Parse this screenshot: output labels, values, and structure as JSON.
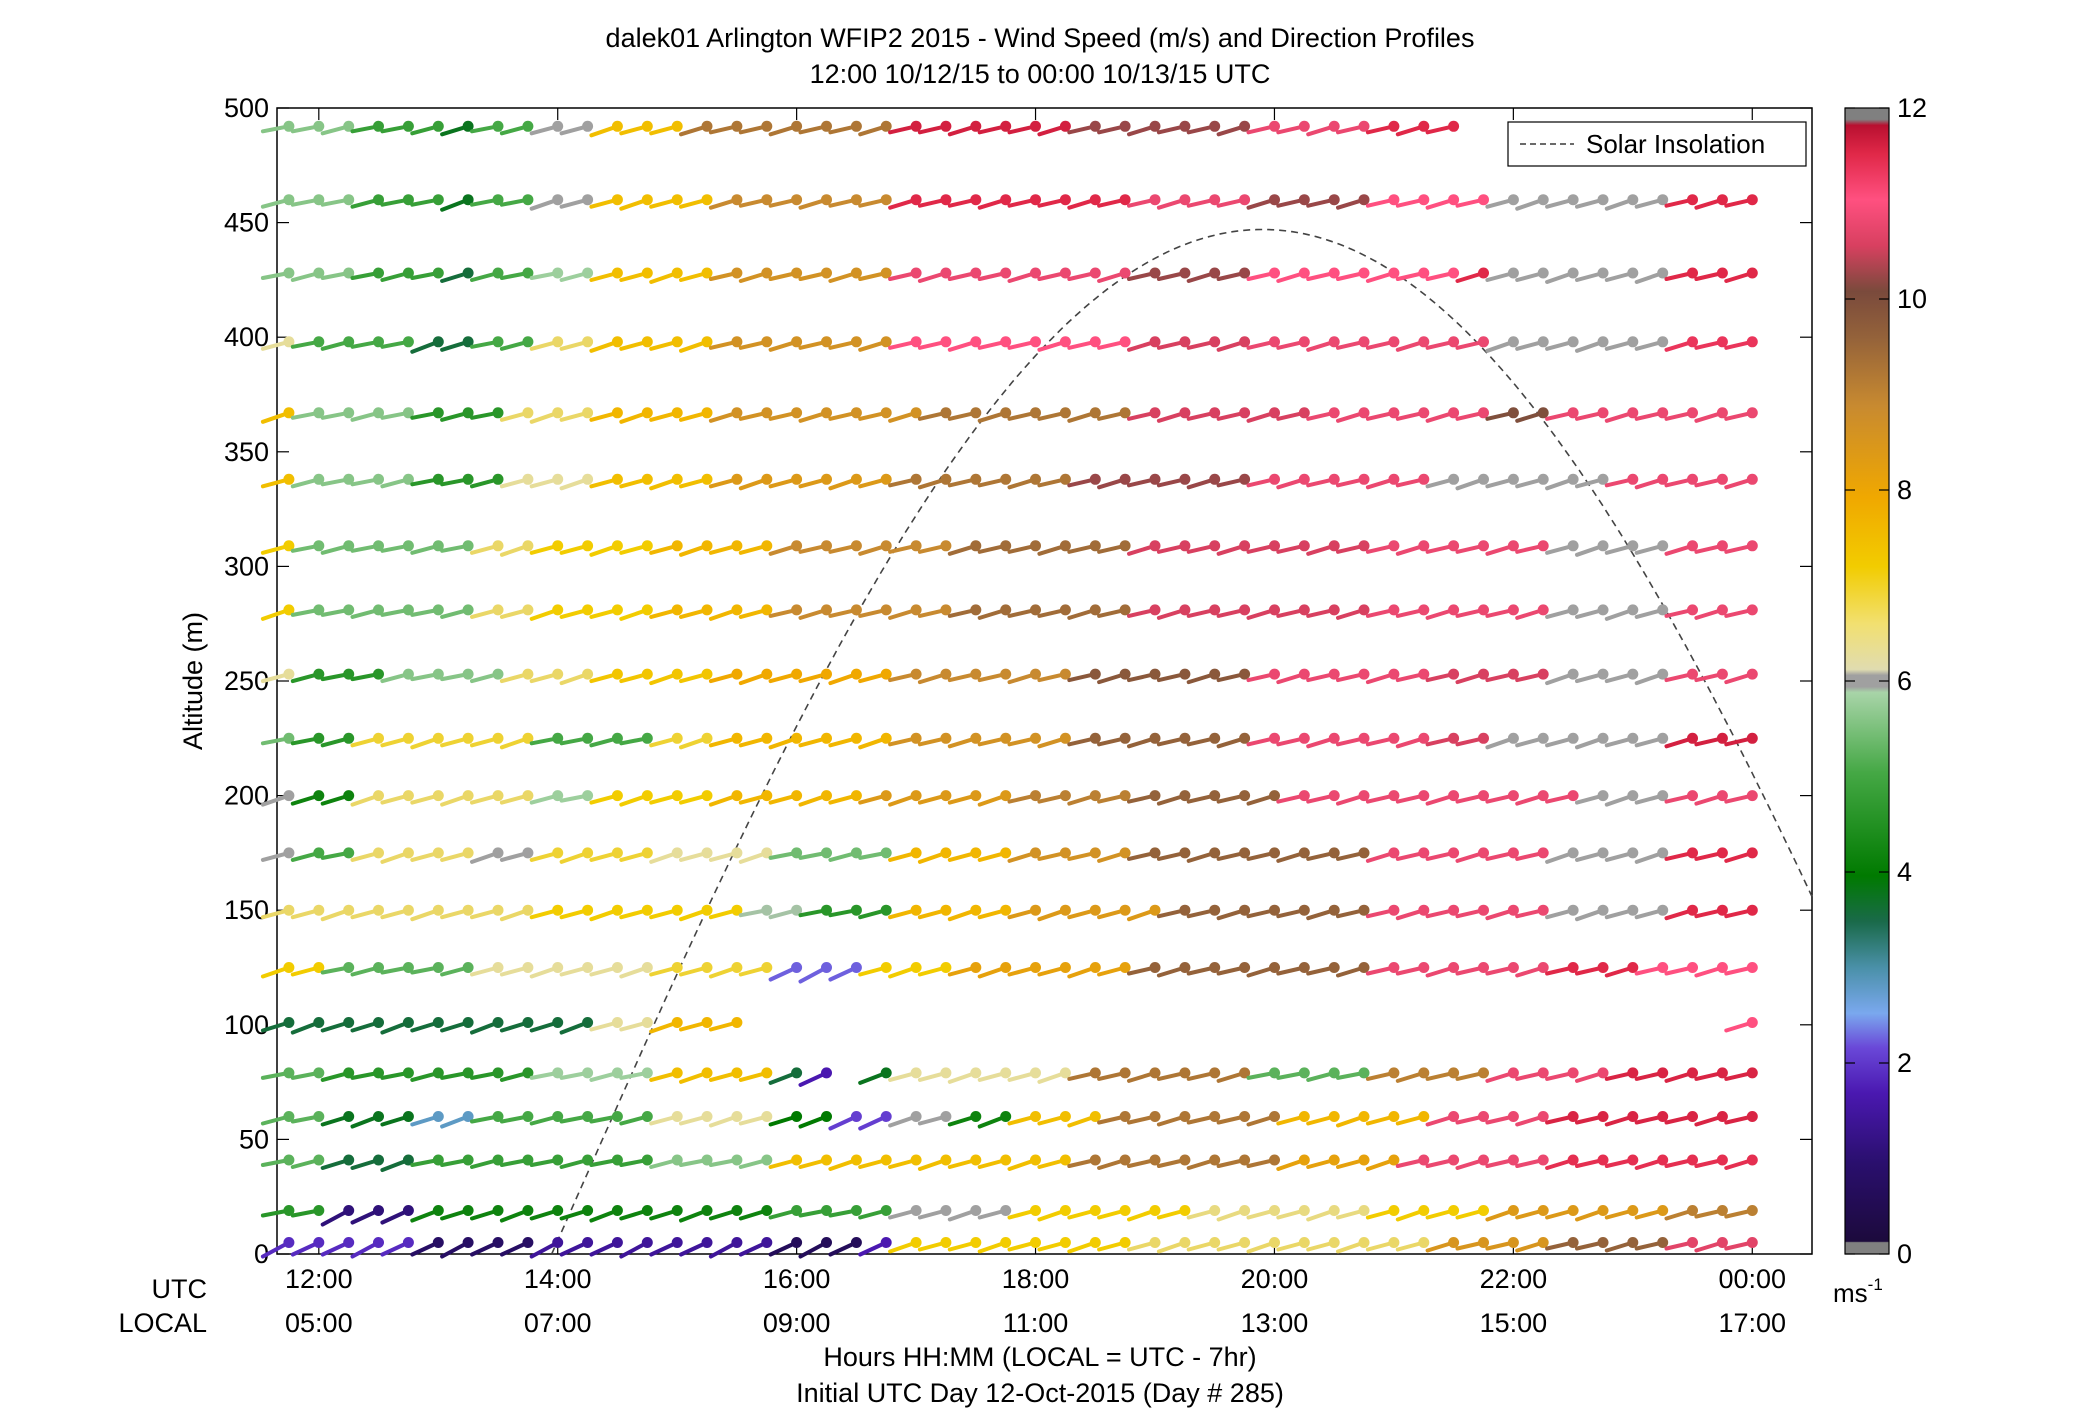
{
  "chart_data": {
    "type": "wind-barb-profile",
    "title": "dalek01 Arlington WFIP2 2015 - Wind Speed (m/s) and Direction Profiles",
    "subtitle": "12:00 10/12/15 to 00:00 10/13/15  UTC",
    "xlabel_line1": "Hours HH:MM  (LOCAL = UTC - 7hr)",
    "xlabel_line2": "Initial UTC Day 12-Oct-2015 (Day # 285)",
    "ylabel": "Altitude (m)",
    "x_range_hours_utc": [
      11.65,
      24.5
    ],
    "ylim": [
      0,
      500
    ],
    "y_ticks": [
      0,
      50,
      100,
      150,
      200,
      250,
      300,
      350,
      400,
      450,
      500
    ],
    "x_row_label_utc": "UTC",
    "x_row_label_local": "LOCAL",
    "x_ticks": [
      {
        "hour": 12,
        "utc": "12:00",
        "local": "05:00"
      },
      {
        "hour": 14,
        "utc": "14:00",
        "local": "07:00"
      },
      {
        "hour": 16,
        "utc": "16:00",
        "local": "09:00"
      },
      {
        "hour": 18,
        "utc": "18:00",
        "local": "11:00"
      },
      {
        "hour": 20,
        "utc": "20:00",
        "local": "13:00"
      },
      {
        "hour": 22,
        "utc": "22:00",
        "local": "15:00"
      },
      {
        "hour": 24,
        "utc": "00:00",
        "local": "17:00"
      }
    ],
    "colorbar": {
      "label": "ms",
      "label_sup": "-1",
      "range": [
        0,
        12
      ],
      "ticks": [
        0,
        2,
        4,
        6,
        8,
        10,
        12
      ]
    },
    "legend": {
      "label": "Solar Insolation",
      "placement": "top-right",
      "style": "dashed"
    },
    "solar_insolation": {
      "start_hour": 13.95,
      "peak_hour": 19.9,
      "peak_altitude": 447,
      "end_hour": 24.5,
      "end_altitude": 152
    },
    "time_step_hours": 0.25,
    "levels": [
      {
        "alt": 5,
        "start": 11.75,
        "end": 24.0,
        "segments": [
          [
            11.75,
            1.8
          ],
          [
            13.0,
            0.8
          ],
          [
            14.0,
            1.4
          ],
          [
            16.0,
            0.6
          ],
          [
            16.75,
            1.6
          ],
          [
            17.0,
            7.0
          ],
          [
            19.0,
            6.6
          ],
          [
            21.5,
            8.5
          ],
          [
            22.5,
            9.6
          ],
          [
            23.5,
            10.5
          ]
        ]
      },
      {
        "alt": 19,
        "start": 11.75,
        "end": 24.0,
        "segments": [
          [
            11.75,
            4.6
          ],
          [
            12.25,
            1.1
          ],
          [
            13.0,
            4.2
          ],
          [
            16.0,
            4.8
          ],
          [
            17.0,
            6.2
          ],
          [
            18.0,
            7.0
          ],
          [
            19.5,
            6.5
          ],
          [
            21.0,
            7.0
          ],
          [
            22.0,
            8.4
          ],
          [
            23.5,
            9.0
          ]
        ]
      },
      {
        "alt": 41,
        "start": 11.75,
        "end": 24.0,
        "segments": [
          [
            11.75,
            5.2
          ],
          [
            12.25,
            3.6
          ],
          [
            13.0,
            4.8
          ],
          [
            15.0,
            5.6
          ],
          [
            16.0,
            7.4
          ],
          [
            18.5,
            9.2
          ],
          [
            20.25,
            8.2
          ],
          [
            21.25,
            10.6
          ],
          [
            22.5,
            11.3
          ]
        ]
      },
      {
        "alt": 60,
        "start": 11.75,
        "end": 24.0,
        "segments": [
          [
            11.75,
            5.2
          ],
          [
            12.25,
            3.8
          ],
          [
            13.0,
            2.8
          ],
          [
            13.5,
            5.0
          ],
          [
            15.0,
            6.4
          ],
          [
            16.0,
            4.0
          ],
          [
            16.5,
            2.0
          ],
          [
            17.0,
            6.2
          ],
          [
            17.5,
            4.2
          ],
          [
            18.0,
            7.4
          ],
          [
            18.75,
            9.2
          ],
          [
            20.25,
            7.6
          ],
          [
            21.5,
            10.6
          ],
          [
            22.5,
            11.5
          ]
        ]
      },
      {
        "alt": 79,
        "start": 11.75,
        "end": 24.0,
        "segments": [
          [
            11.75,
            5.2
          ],
          [
            12.25,
            4.6
          ],
          [
            14.0,
            5.8
          ],
          [
            15.0,
            7.4
          ],
          [
            16.0,
            3.6
          ],
          [
            16.25,
            1.6
          ],
          [
            16.5,
            9999
          ],
          [
            16.75,
            3.8
          ],
          [
            17.0,
            6.4
          ],
          [
            18.5,
            9.2
          ],
          [
            20.0,
            5.2
          ],
          [
            21.0,
            9.0
          ],
          [
            22.0,
            10.6
          ],
          [
            23.0,
            11.5
          ]
        ]
      },
      {
        "alt": 101,
        "start": 11.75,
        "end": 24.0,
        "segments": [
          [
            11.75,
            3.6
          ],
          [
            14.5,
            6.4
          ],
          [
            15.0,
            7.6
          ],
          [
            15.75,
            9999
          ],
          [
            24.0,
            10.8
          ]
        ]
      },
      {
        "alt": 125,
        "start": 11.75,
        "end": 24.0,
        "segments": [
          [
            11.75,
            7.0
          ],
          [
            12.25,
            5.2
          ],
          [
            13.5,
            6.4
          ],
          [
            15.0,
            6.8
          ],
          [
            16.0,
            2.2
          ],
          [
            16.75,
            7.0
          ],
          [
            17.5,
            8.2
          ],
          [
            19.0,
            9.6
          ],
          [
            21.0,
            10.6
          ],
          [
            22.5,
            11.4
          ],
          [
            23.25,
            10.8
          ]
        ]
      },
      {
        "alt": 150,
        "start": 11.75,
        "end": 24.0,
        "segments": [
          [
            11.75,
            6.6
          ],
          [
            14.0,
            7.0
          ],
          [
            15.75,
            6.0
          ],
          [
            16.25,
            4.6
          ],
          [
            17.0,
            7.6
          ],
          [
            18.0,
            8.4
          ],
          [
            19.25,
            9.6
          ],
          [
            21.0,
            10.6
          ],
          [
            22.5,
            6.2
          ],
          [
            23.5,
            11.4
          ]
        ]
      },
      {
        "alt": 175,
        "start": 11.75,
        "end": 24.0,
        "segments": [
          [
            11.75,
            6.2
          ],
          [
            12.0,
            5.0
          ],
          [
            12.5,
            6.6
          ],
          [
            13.5,
            6.2
          ],
          [
            14.0,
            6.8
          ],
          [
            15.0,
            6.4
          ],
          [
            16.0,
            5.4
          ],
          [
            17.0,
            7.6
          ],
          [
            18.0,
            8.6
          ],
          [
            19.0,
            9.6
          ],
          [
            21.0,
            10.6
          ],
          [
            22.5,
            6.2
          ],
          [
            23.5,
            11.4
          ]
        ]
      },
      {
        "alt": 200,
        "start": 11.75,
        "end": 24.0,
        "segments": [
          [
            11.75,
            6.2
          ],
          [
            12.0,
            4.2
          ],
          [
            12.5,
            6.6
          ],
          [
            14.0,
            5.8
          ],
          [
            14.5,
            7.0
          ],
          [
            15.5,
            7.6
          ],
          [
            16.75,
            8.4
          ],
          [
            18.0,
            9.0
          ],
          [
            19.0,
            9.6
          ],
          [
            20.25,
            10.6
          ],
          [
            21.75,
            10.6
          ],
          [
            22.75,
            6.2
          ],
          [
            23.5,
            10.6
          ]
        ]
      },
      {
        "alt": 225,
        "start": 11.75,
        "end": 24.0,
        "segments": [
          [
            11.75,
            5.4
          ],
          [
            12.0,
            4.6
          ],
          [
            12.5,
            6.8
          ],
          [
            14.0,
            5.0
          ],
          [
            15.0,
            6.8
          ],
          [
            15.5,
            7.6
          ],
          [
            17.0,
            8.6
          ],
          [
            18.5,
            9.6
          ],
          [
            20.0,
            10.6
          ],
          [
            21.5,
            10.4
          ],
          [
            22.0,
            6.2
          ],
          [
            23.5,
            11.6
          ]
        ]
      },
      {
        "alt": 253,
        "start": 11.75,
        "end": 24.0,
        "segments": [
          [
            11.75,
            6.4
          ],
          [
            12.0,
            4.6
          ],
          [
            12.75,
            5.6
          ],
          [
            13.75,
            6.6
          ],
          [
            14.5,
            7.2
          ],
          [
            15.5,
            8.0
          ],
          [
            17.0,
            8.8
          ],
          [
            18.5,
            9.8
          ],
          [
            20.0,
            10.6
          ],
          [
            21.5,
            10.4
          ],
          [
            22.5,
            6.2
          ],
          [
            23.5,
            10.6
          ]
        ]
      },
      {
        "alt": 281,
        "start": 11.75,
        "end": 24.0,
        "segments": [
          [
            11.75,
            7.0
          ],
          [
            12.0,
            5.4
          ],
          [
            13.5,
            6.6
          ],
          [
            14.0,
            7.0
          ],
          [
            15.0,
            7.6
          ],
          [
            16.0,
            8.8
          ],
          [
            17.5,
            9.4
          ],
          [
            19.0,
            10.4
          ],
          [
            21.0,
            10.6
          ],
          [
            22.5,
            6.2
          ],
          [
            23.5,
            10.6
          ]
        ]
      },
      {
        "alt": 309,
        "start": 11.75,
        "end": 24.0,
        "segments": [
          [
            11.75,
            7.0
          ],
          [
            12.0,
            5.4
          ],
          [
            13.5,
            6.6
          ],
          [
            14.0,
            7.0
          ],
          [
            15.0,
            7.6
          ],
          [
            16.0,
            8.8
          ],
          [
            17.5,
            9.4
          ],
          [
            19.0,
            10.4
          ],
          [
            21.0,
            10.6
          ],
          [
            22.5,
            6.2
          ],
          [
            23.5,
            10.6
          ]
        ]
      },
      {
        "alt": 338,
        "start": 11.75,
        "end": 24.0,
        "segments": [
          [
            11.75,
            7.4
          ],
          [
            12.0,
            5.6
          ],
          [
            13.0,
            4.6
          ],
          [
            13.75,
            6.4
          ],
          [
            14.5,
            7.4
          ],
          [
            15.5,
            8.4
          ],
          [
            17.0,
            9.2
          ],
          [
            18.5,
            10.2
          ],
          [
            20.0,
            10.6
          ],
          [
            21.5,
            6.2
          ],
          [
            23.0,
            10.6
          ]
        ]
      },
      {
        "alt": 367,
        "start": 11.75,
        "end": 24.0,
        "segments": [
          [
            11.75,
            7.4
          ],
          [
            12.0,
            5.6
          ],
          [
            13.0,
            4.6
          ],
          [
            13.75,
            6.6
          ],
          [
            14.5,
            7.6
          ],
          [
            15.5,
            8.6
          ],
          [
            17.25,
            9.2
          ],
          [
            19.0,
            10.4
          ],
          [
            20.5,
            10.6
          ],
          [
            22.0,
            10.0
          ],
          [
            22.5,
            10.6
          ]
        ]
      },
      {
        "alt": 398,
        "start": 11.75,
        "end": 24.0,
        "segments": [
          [
            11.75,
            6.4
          ],
          [
            12.0,
            5.0
          ],
          [
            13.0,
            3.6
          ],
          [
            13.5,
            5.0
          ],
          [
            14.0,
            6.6
          ],
          [
            14.5,
            7.4
          ],
          [
            15.5,
            8.6
          ],
          [
            17.0,
            10.8
          ],
          [
            19.0,
            10.4
          ],
          [
            20.0,
            10.6
          ],
          [
            22.0,
            6.2
          ],
          [
            23.5,
            11.2
          ]
        ]
      },
      {
        "alt": 428,
        "start": 11.75,
        "end": 24.0,
        "segments": [
          [
            11.75,
            5.6
          ],
          [
            12.5,
            4.8
          ],
          [
            13.25,
            3.6
          ],
          [
            13.5,
            5.0
          ],
          [
            14.0,
            5.8
          ],
          [
            14.5,
            7.4
          ],
          [
            15.5,
            8.6
          ],
          [
            17.0,
            10.6
          ],
          [
            19.0,
            10.2
          ],
          [
            20.0,
            10.8
          ],
          [
            21.75,
            11.4
          ],
          [
            22.0,
            6.2
          ],
          [
            23.5,
            11.4
          ]
        ]
      },
      {
        "alt": 460,
        "start": 11.75,
        "end": 24.0,
        "segments": [
          [
            11.75,
            5.6
          ],
          [
            12.5,
            4.8
          ],
          [
            13.25,
            3.8
          ],
          [
            13.5,
            5.0
          ],
          [
            14.0,
            6.2
          ],
          [
            14.5,
            7.4
          ],
          [
            15.5,
            8.8
          ],
          [
            17.0,
            11.4
          ],
          [
            19.0,
            10.6
          ],
          [
            20.0,
            10.2
          ],
          [
            21.0,
            10.8
          ],
          [
            22.0,
            6.2
          ],
          [
            23.5,
            11.4
          ]
        ]
      },
      {
        "alt": 492,
        "start": 11.75,
        "end": 21.5,
        "segments": [
          [
            11.75,
            5.6
          ],
          [
            12.5,
            4.8
          ],
          [
            13.25,
            3.8
          ],
          [
            13.5,
            5.0
          ],
          [
            14.0,
            6.2
          ],
          [
            14.5,
            7.4
          ],
          [
            15.25,
            9.2
          ],
          [
            17.0,
            11.6
          ],
          [
            18.5,
            10.2
          ],
          [
            20.0,
            10.6
          ],
          [
            21.0,
            11.4
          ]
        ]
      }
    ]
  }
}
